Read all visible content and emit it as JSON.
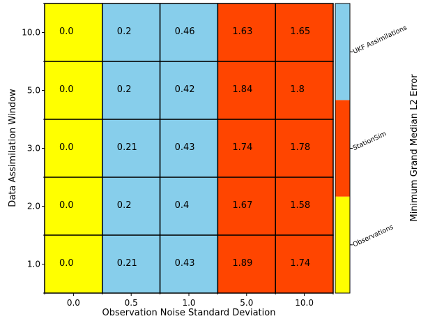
{
  "chart_data": {
    "type": "heatmap",
    "xlabel": "Observation Noise Standard Deviation",
    "ylabel": "Data Assimilation Window",
    "x_categories": [
      "0.0",
      "0.5",
      "1.0",
      "5.0",
      "10.0"
    ],
    "y_categories": [
      "10.0",
      "5.0",
      "3.0",
      "2.0",
      "1.0"
    ],
    "values": [
      [
        "0.0",
        "0.2",
        "0.46",
        "1.63",
        "1.65"
      ],
      [
        "0.0",
        "0.2",
        "0.42",
        "1.84",
        "1.8"
      ],
      [
        "0.0",
        "0.21",
        "0.43",
        "1.74",
        "1.78"
      ],
      [
        "0.0",
        "0.2",
        "0.4",
        "1.67",
        "1.58"
      ],
      [
        "0.0",
        "0.21",
        "0.43",
        "1.89",
        "1.74"
      ]
    ],
    "cell_category": [
      [
        "Observations",
        "UKF Assimilations",
        "UKF Assimilations",
        "StationSim",
        "StationSim"
      ],
      [
        "Observations",
        "UKF Assimilations",
        "UKF Assimilations",
        "StationSim",
        "StationSim"
      ],
      [
        "Observations",
        "UKF Assimilations",
        "UKF Assimilations",
        "StationSim",
        "StationSim"
      ],
      [
        "Observations",
        "UKF Assimilations",
        "UKF Assimilations",
        "StationSim",
        "StationSim"
      ],
      [
        "Observations",
        "UKF Assimilations",
        "UKF Assimilations",
        "StationSim",
        "StationSim"
      ]
    ],
    "colorbar": {
      "label": "Minimum Grand Median L2 Error",
      "categories": [
        {
          "name": "Observations",
          "color": "#ffff00"
        },
        {
          "name": "StationSim",
          "color": "#ff4500"
        },
        {
          "name": "UKF Assimilations",
          "color": "#87ceeb"
        }
      ]
    }
  }
}
